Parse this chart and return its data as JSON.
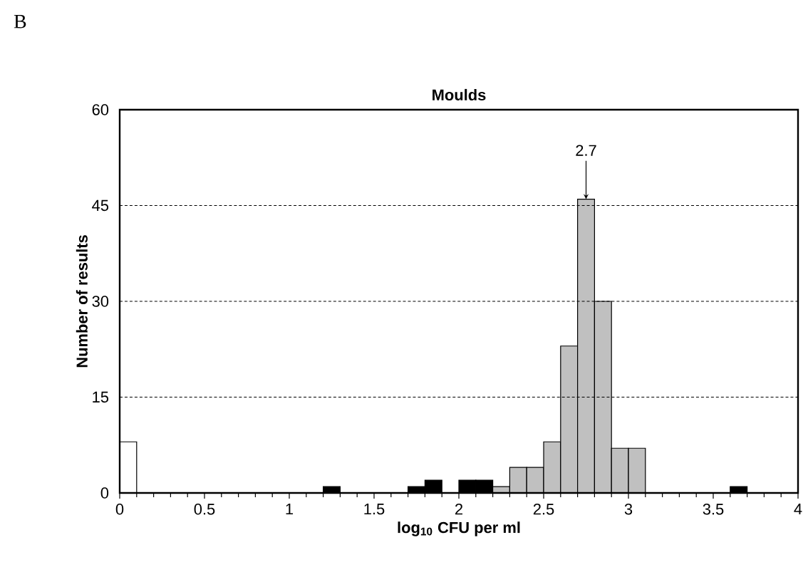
{
  "chart_data": {
    "type": "histogram",
    "title": "Moulds",
    "xlabel": "log$_{10}$ CFU per ml",
    "ylabel": "Number of results",
    "annotations": [
      "B",
      {
        "text": "2.7",
        "x": 2.75,
        "y": 46
      }
    ],
    "bins": [
      0,
      0.1,
      0.2,
      0.3,
      0.4,
      0.5,
      0.6,
      0.7,
      0.8,
      0.9,
      1,
      1.1,
      1.2,
      1.3,
      1.4,
      1.5,
      1.6,
      1.7,
      1.8,
      1.9,
      2,
      2.1,
      2.2,
      2.3,
      2.4,
      2.5,
      2.6,
      2.7,
      2.8,
      2.9,
      3,
      3.1,
      3.2,
      3.3,
      3.4,
      3.5,
      3.6,
      3.7,
      3.8,
      3.9,
      4
    ],
    "values": [
      8,
      0,
      0,
      0,
      0,
      0,
      0,
      0,
      0,
      0,
      0,
      0,
      1,
      0,
      0,
      0,
      0,
      1,
      2,
      0,
      2,
      2,
      1,
      4,
      4,
      8,
      23,
      46,
      30,
      7,
      7,
      0,
      0,
      0,
      0,
      0,
      1,
      0,
      0,
      0
    ],
    "colors": [
      "#ffffff",
      "#c0c0c0",
      "#c0c0c0",
      "#c0c0c0",
      "#c0c0c0",
      "#c0c0c0",
      "#c0c0c0",
      "#c0c0c0",
      "#c0c0c0",
      "#c0c0c0",
      "#c0c0c0",
      "#c0c0c0",
      "#000000",
      "#c0c0c0",
      "#c0c0c0",
      "#c0c0c0",
      "#c0c0c0",
      "#000000",
      "#000000",
      "#c0c0c0",
      "#000000",
      "#000000",
      "#c0c0c0",
      "#c0c0c0",
      "#c0c0c0",
      "#c0c0c0",
      "#c0c0c0",
      "#c0c0c0",
      "#c0c0c0",
      "#c0c0c0",
      "#c0c0c0",
      "#c0c0c0",
      "#c0c0c0",
      "#c0c0c0",
      "#c0c0c0",
      "#c0c0c0",
      "#000000",
      "#c0c0c0",
      "#c0c0c0",
      "#c0c0c0"
    ],
    "xlim": [
      0,
      4
    ],
    "ylim": [
      0,
      60
    ],
    "xticks": [
      0,
      0.5,
      1,
      1.5,
      2,
      2.5,
      3,
      3.5,
      4
    ],
    "yticks": [
      0,
      15,
      30,
      45,
      60
    ],
    "grid": "y",
    "line_style": "dashed"
  }
}
